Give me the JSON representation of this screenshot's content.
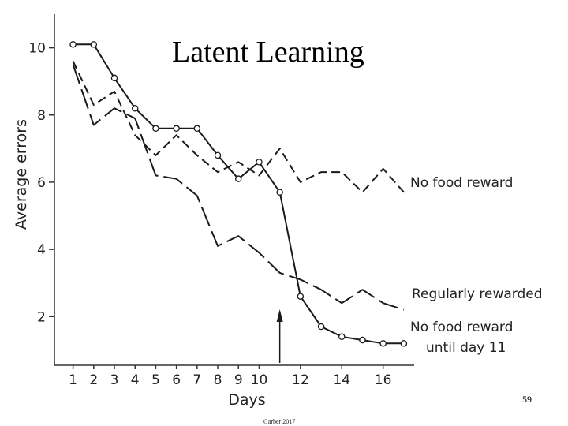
{
  "slide": {
    "title": "Latent Learning",
    "page_number": "59",
    "credit": "Garber 2017"
  },
  "chart_data": {
    "type": "line",
    "title": "Latent Learning",
    "xlabel": "Days",
    "ylabel": "Average errors",
    "xlim": [
      0.1,
      17.5
    ],
    "ylim": [
      0.55,
      11
    ],
    "x_ticks": [
      1,
      2,
      3,
      4,
      5,
      6,
      7,
      8,
      9,
      10,
      12,
      14,
      16
    ],
    "y_ticks": [
      2,
      4,
      6,
      8,
      10
    ],
    "grid": false,
    "legend": "inline labels at right end of each line",
    "annotation": {
      "type": "arrow",
      "x": 11,
      "description": "upward arrow at day 11"
    },
    "series": [
      {
        "name": "No food reward",
        "style": "dashed",
        "x": [
          1,
          2,
          3,
          4,
          5,
          6,
          7,
          8,
          9,
          10,
          11,
          12,
          13,
          14,
          15,
          16,
          17
        ],
        "y": [
          9.6,
          8.3,
          8.7,
          7.4,
          6.8,
          7.4,
          6.8,
          6.3,
          6.6,
          6.2,
          7.0,
          6.0,
          6.3,
          6.3,
          5.7,
          6.4,
          5.7
        ]
      },
      {
        "name": "Regularly rewarded",
        "style": "long-dashed",
        "x": [
          1,
          2,
          3,
          4,
          5,
          6,
          7,
          8,
          9,
          10,
          11,
          12,
          13,
          14,
          15,
          16,
          17
        ],
        "y": [
          9.5,
          7.7,
          8.2,
          7.9,
          6.2,
          6.1,
          5.6,
          4.1,
          4.4,
          3.9,
          3.3,
          3.1,
          2.8,
          2.4,
          2.8,
          2.4,
          2.2
        ]
      },
      {
        "name": "No food reward until day 11",
        "label_lines": [
          "No food reward",
          "until day 11"
        ],
        "style": "solid-circles",
        "x": [
          1,
          2,
          3,
          4,
          5,
          6,
          7,
          8,
          9,
          10,
          11,
          12,
          13,
          14,
          15,
          16,
          17
        ],
        "y": [
          10.1,
          10.1,
          9.1,
          8.2,
          7.6,
          7.6,
          7.6,
          6.8,
          6.1,
          6.6,
          5.7,
          2.6,
          1.7,
          1.4,
          1.3,
          1.2,
          1.2
        ]
      }
    ]
  }
}
